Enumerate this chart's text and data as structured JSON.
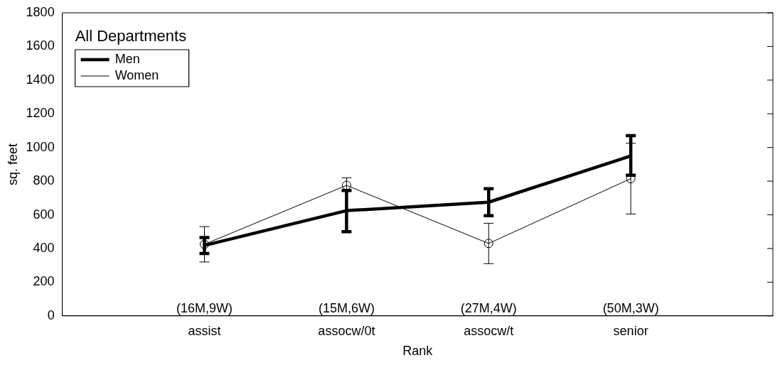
{
  "chart_data": {
    "type": "line",
    "xlabel": "Rank",
    "ylabel": "sq. feet",
    "legend_title": "All Departments",
    "categories": [
      "assist",
      "assocw/0t",
      "assocw/t",
      "senior"
    ],
    "series": [
      {
        "name": "Men",
        "color": "#000000",
        "values": [
          418,
          625,
          675,
          950
        ],
        "errors": [
          [
            370,
            465
          ],
          [
            500,
            745
          ],
          [
            595,
            755
          ],
          [
            835,
            1070
          ]
        ],
        "marker": "none"
      },
      {
        "name": "Women",
        "color": "#000000",
        "values": [
          425,
          775,
          430,
          815
        ],
        "errors": [
          [
            320,
            530
          ],
          [
            740,
            820
          ],
          [
            310,
            550
          ],
          [
            605,
            1025
          ]
        ],
        "marker": "circle"
      }
    ],
    "annotations": [
      "(16M,9W)",
      "(15M,6W)",
      "(27M,4W)",
      "(50M,3W)"
    ],
    "ylim": [
      0,
      1800
    ],
    "yticks": [
      0,
      200,
      400,
      600,
      800,
      1000,
      1200,
      1400,
      1600,
      1800
    ],
    "grid": false,
    "legend": "top left",
    "line_style": "solid"
  }
}
